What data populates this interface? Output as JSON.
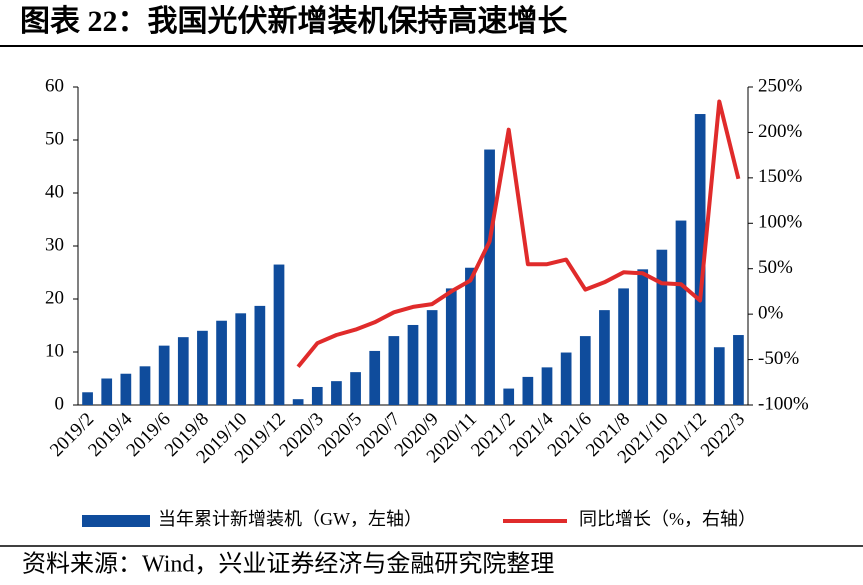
{
  "title": "图表 22：我国光伏新增装机保持高速增长",
  "source": "资料来源：Wind，兴业证券经济与金融研究院整理",
  "chart_data": {
    "type": "bar",
    "categories": [
      "2019/2",
      null,
      "2019/4",
      null,
      "2019/6",
      null,
      "2019/8",
      null,
      "2019/10",
      null,
      "2019/12",
      null,
      "2020/3",
      null,
      "2020/5",
      null,
      "2020/7",
      null,
      "2020/9",
      null,
      "2020/11",
      null,
      "2021/2",
      null,
      "2021/4",
      null,
      "2021/6",
      null,
      "2021/8",
      null,
      "2021/10",
      null,
      "2021/12",
      null,
      "2022/3"
    ],
    "series": [
      {
        "name": "当年累计新增装机（GW，左轴）",
        "type": "bar",
        "color": "#0f4c9c",
        "values": [
          2.4,
          5.0,
          5.9,
          7.3,
          11.2,
          12.8,
          14.0,
          15.9,
          17.3,
          18.7,
          26.5,
          1.1,
          3.4,
          4.5,
          6.2,
          10.2,
          13.0,
          15.1,
          17.9,
          22.0,
          25.9,
          48.2,
          3.1,
          5.3,
          7.1,
          9.9,
          13.0,
          17.9,
          22.0,
          25.6,
          29.3,
          34.8,
          54.9,
          10.9,
          13.2
        ]
      },
      {
        "name": "同比增长（%，右轴）",
        "type": "line",
        "axis": "y2",
        "color": "#e02b2b",
        "values": [
          null,
          null,
          null,
          null,
          null,
          null,
          null,
          null,
          null,
          null,
          null,
          -58,
          -32,
          -23,
          -17,
          -9,
          2,
          8,
          11,
          25,
          37,
          80,
          203,
          55,
          55,
          60,
          27,
          35,
          46,
          45,
          34,
          33,
          15,
          234,
          149
        ]
      }
    ],
    "ylim": [
      0,
      60
    ],
    "yticks": [
      0,
      10,
      20,
      30,
      40,
      50,
      60
    ],
    "y2lim": [
      -100,
      250
    ],
    "y2ticks": [
      {
        "value": -100,
        "label": "-100%"
      },
      {
        "value": -50,
        "label": "-50%"
      },
      {
        "value": 0,
        "label": "0%"
      },
      {
        "value": 50,
        "label": "50%"
      },
      {
        "value": 100,
        "label": "100%"
      },
      {
        "value": 150,
        "label": "150%"
      },
      {
        "value": 200,
        "label": "200%"
      },
      {
        "value": 250,
        "label": "250%"
      }
    ]
  }
}
